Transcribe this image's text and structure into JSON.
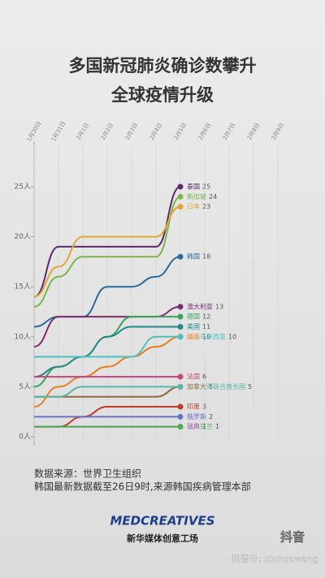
{
  "chart_data": {
    "type": "line",
    "title": "多国新冠肺炎确诊数攀升",
    "subtitle": "全球疫情升级",
    "x": [
      "1月30日",
      "1月31日",
      "2月1日",
      "2月2日",
      "2月3日",
      "2月4日",
      "2月5日",
      "2月6日",
      "2月7日",
      "2月8日",
      "2月9日"
    ],
    "ylim": [
      0,
      25
    ],
    "yticks": [
      {
        "value": 0,
        "label": "0人"
      },
      {
        "value": 5,
        "label": "5人"
      },
      {
        "value": 10,
        "label": "10人"
      },
      {
        "value": 15,
        "label": "15人"
      },
      {
        "value": 20,
        "label": "20人"
      },
      {
        "value": 25,
        "label": "25人"
      }
    ],
    "series": [
      {
        "name": "泰国",
        "color": "#5b2a6e",
        "values": [
          14,
          19,
          19,
          19,
          19,
          19,
          25,
          null,
          null,
          null,
          null
        ]
      },
      {
        "name": "新加坡",
        "color": "#7ab648",
        "values": [
          13,
          16,
          18,
          18,
          18,
          18,
          24,
          null,
          null,
          null,
          null
        ]
      },
      {
        "name": "日本",
        "color": "#e0a830",
        "values": [
          14,
          17,
          20,
          20,
          20,
          20,
          23,
          null,
          null,
          null,
          null
        ]
      },
      {
        "name": "韩国",
        "color": "#2b6a9a",
        "values": [
          11,
          12,
          12,
          15,
          15,
          16,
          18,
          null,
          null,
          null,
          null
        ]
      },
      {
        "name": "澳大利亚",
        "color": "#7b2d6e",
        "values": [
          9,
          12,
          12,
          12,
          12,
          12,
          13,
          null,
          null,
          null,
          null
        ]
      },
      {
        "name": "德国",
        "color": "#3aa35a",
        "values": [
          5,
          7,
          8,
          10,
          12,
          12,
          12,
          null,
          null,
          null,
          null
        ]
      },
      {
        "name": "美国",
        "color": "#1e8a86",
        "values": [
          6,
          7,
          8,
          10,
          11,
          11,
          11,
          null,
          null,
          null,
          null
        ]
      },
      {
        "name": "越南",
        "color": "#e67e22",
        "values": [
          3,
          5,
          6,
          7,
          8,
          9,
          10,
          null,
          null,
          null,
          null
        ]
      },
      {
        "name": "马来西亚",
        "color": "#4cc0c0",
        "values": [
          8,
          8,
          8,
          8,
          8,
          10,
          10,
          null,
          null,
          null,
          null
        ]
      },
      {
        "name": "法国",
        "color": "#c2477a",
        "values": [
          6,
          6,
          6,
          6,
          6,
          6,
          6,
          null,
          null,
          null,
          null
        ]
      },
      {
        "name": "加拿大",
        "color": "#8b6b3a",
        "values": [
          4,
          4,
          4,
          4,
          4,
          4,
          5,
          null,
          null,
          null,
          null
        ]
      },
      {
        "name": "阿联合酋长国",
        "color": "#5bb5a8",
        "values": [
          4,
          4,
          5,
          5,
          5,
          5,
          5,
          null,
          null,
          null,
          null
        ]
      },
      {
        "name": "印度",
        "color": "#c0392b",
        "values": [
          1,
          1,
          2,
          3,
          3,
          3,
          3,
          null,
          null,
          null,
          null
        ]
      },
      {
        "name": "俄罗斯",
        "color": "#6c6fc9",
        "values": [
          2,
          2,
          2,
          2,
          2,
          2,
          2,
          null,
          null,
          null,
          null
        ]
      },
      {
        "name": "瑞典",
        "color": "#9b59b6",
        "values": [
          1,
          1,
          1,
          1,
          1,
          1,
          1,
          null,
          null,
          null,
          null
        ]
      },
      {
        "name": "芬兰",
        "color": "#4caf50",
        "values": [
          1,
          1,
          1,
          1,
          1,
          1,
          1,
          null,
          null,
          null,
          null
        ]
      }
    ]
  },
  "notes": [
    "数据来源：世界卫生组织",
    "韩国最新数据截至26日9时,来源韩国疾病管理本部"
  ],
  "brand": {
    "logo": "MEDCREATIVES",
    "name": "新华媒体创意工场"
  },
  "app": {
    "name": "抖音",
    "account": "抖音号: xinhuawang"
  }
}
